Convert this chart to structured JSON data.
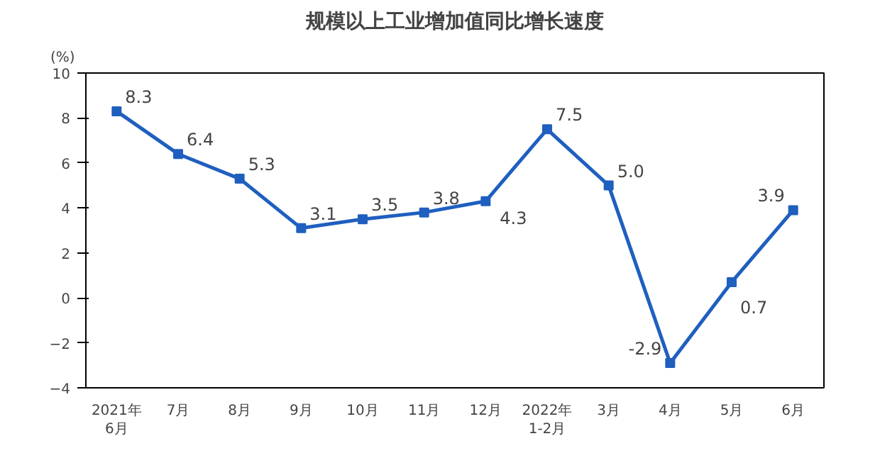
{
  "chart_data": {
    "type": "line",
    "title": "规模以上工业增加值同比增长速度",
    "ylabel": "(%)",
    "categories": [
      "2021年\n6月",
      "7月",
      "8月",
      "9月",
      "10月",
      "11月",
      "12月",
      "2022年\n1-2月",
      "3月",
      "4月",
      "5月",
      "6月"
    ],
    "series": [
      {
        "color": "#1f5fbf",
        "values": [
          8.3,
          6.4,
          5.3,
          3.1,
          3.5,
          3.8,
          4.3,
          7.5,
          5.0,
          -2.9,
          0.7,
          3.9
        ],
        "value_labels": [
          "8.3",
          "6.4",
          "5.3",
          "3.1",
          "3.5",
          "3.8",
          "4.3",
          "7.5",
          "5.0",
          "-2.9",
          "0.7",
          "3.9"
        ]
      }
    ],
    "ylim": [
      -4,
      10
    ],
    "yticks": [
      -4,
      -2,
      0,
      2,
      4,
      6,
      8,
      10
    ],
    "grid": false,
    "marker": "square",
    "line_style": "solid"
  }
}
